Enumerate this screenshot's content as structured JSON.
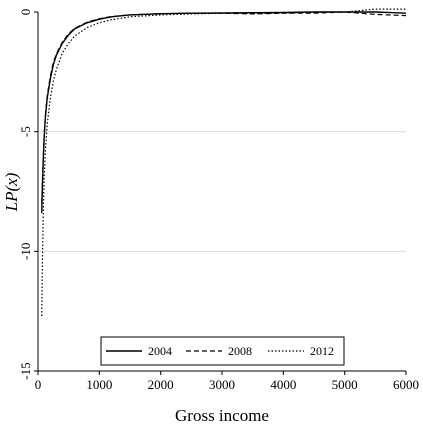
{
  "chart_data": {
    "type": "line",
    "title": "",
    "xlabel": "Gross income",
    "ylabel": "LP(x)",
    "xlim": [
      0,
      6000
    ],
    "ylim": [
      -15,
      0
    ],
    "xticks": [
      0,
      1000,
      2000,
      3000,
      4000,
      5000,
      6000
    ],
    "yticks": [
      0,
      -5,
      -10,
      -15
    ],
    "xtick_labels": [
      "0",
      "1000",
      "2000",
      "3000",
      "4000",
      "5000",
      "6000"
    ],
    "ytick_labels": [
      "0",
      "-5",
      "-10",
      "-15"
    ],
    "grid": "horizontal",
    "legend_position": "bottom",
    "series": [
      {
        "name": "2004",
        "style": "solid",
        "x": [
          60,
          80,
          100,
          120,
          150,
          200,
          250,
          300,
          400,
          500,
          600,
          800,
          1000,
          1200,
          1500,
          2000,
          2500,
          3000,
          3500,
          4000,
          4500,
          5000,
          5500,
          6000
        ],
        "y": [
          -8.4,
          -6.6,
          -5.3,
          -4.4,
          -3.6,
          -2.8,
          -2.2,
          -1.8,
          -1.3,
          -0.95,
          -0.7,
          -0.45,
          -0.3,
          -0.2,
          -0.12,
          -0.07,
          -0.05,
          -0.04,
          -0.03,
          -0.02,
          0.0,
          0.0,
          0.0,
          -0.05
        ]
      },
      {
        "name": "2008",
        "style": "dashed",
        "x": [
          60,
          80,
          100,
          120,
          150,
          200,
          250,
          300,
          400,
          500,
          600,
          800,
          1000,
          1200,
          1500,
          2000,
          2500,
          3000,
          3500,
          4000,
          4500,
          5000,
          5500,
          6000
        ],
        "y": [
          -8.0,
          -6.4,
          -5.2,
          -4.3,
          -3.5,
          -2.7,
          -2.1,
          -1.75,
          -1.25,
          -0.9,
          -0.68,
          -0.42,
          -0.28,
          -0.19,
          -0.12,
          -0.07,
          -0.05,
          -0.05,
          -0.08,
          -0.05,
          -0.05,
          0.0,
          -0.1,
          -0.15
        ]
      },
      {
        "name": "2012",
        "style": "dotted",
        "x": [
          60,
          70,
          80,
          90,
          100,
          120,
          150,
          200,
          250,
          300,
          400,
          500,
          600,
          800,
          1000,
          1200,
          1500,
          2000,
          2500,
          3000,
          3500,
          4000,
          4500,
          5000,
          5500,
          6000
        ],
        "y": [
          -12.7,
          -10.8,
          -9.2,
          -8.0,
          -7.0,
          -5.8,
          -4.7,
          -3.6,
          -2.9,
          -2.4,
          -1.7,
          -1.3,
          -1.0,
          -0.65,
          -0.45,
          -0.32,
          -0.2,
          -0.12,
          -0.08,
          -0.05,
          -0.05,
          -0.05,
          0.0,
          0.0,
          0.12,
          0.12
        ]
      }
    ]
  }
}
